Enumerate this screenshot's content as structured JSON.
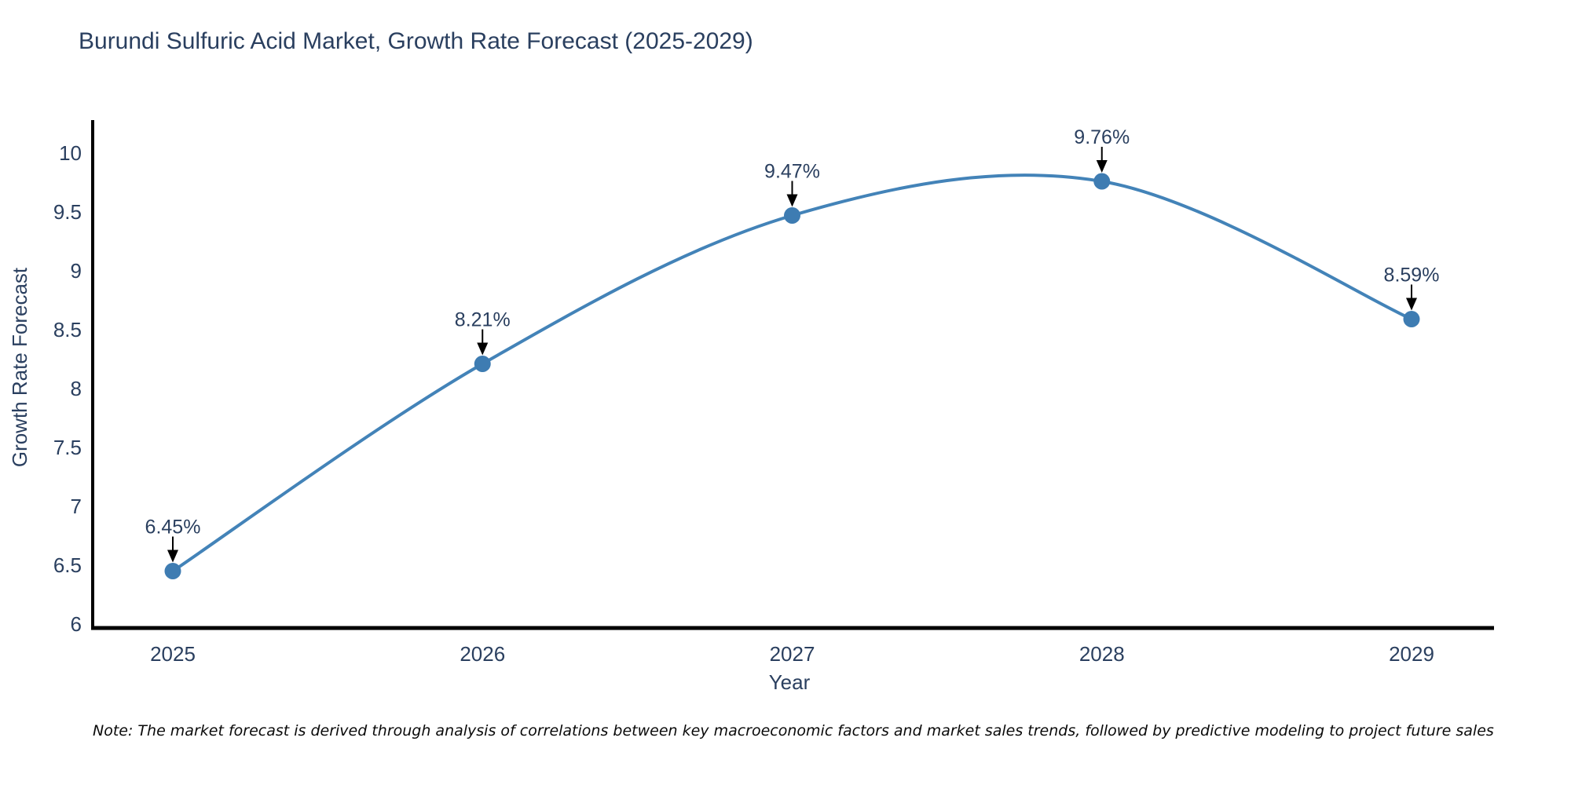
{
  "page": {
    "title": "Burundi Sulfuric Acid Market, Growth Rate Forecast (2025-2029)",
    "note": "Note: The market forecast is derived through analysis of correlations between key macroeconomic factors and market sales trends, followed by predictive modeling to project future sales"
  },
  "chart_data": {
    "type": "line",
    "line_shape": "spline",
    "markers": true,
    "title": "Burundi Sulfuric Acid Market, Growth Rate Forecast (2025-2029)",
    "xlabel": "Year",
    "ylabel": "Growth Rate Forecast",
    "categories": [
      "2025",
      "2026",
      "2027",
      "2028",
      "2029"
    ],
    "values": [
      6.45,
      8.21,
      9.47,
      9.76,
      8.59
    ],
    "point_labels": [
      "6.45%",
      "8.21%",
      "9.47%",
      "9.76%",
      "8.59%"
    ],
    "yticks": [
      6,
      6.5,
      7,
      7.5,
      8,
      8.5,
      9,
      9.5,
      10
    ],
    "ytick_labels": [
      "6",
      "6.5",
      "7",
      "7.5",
      "8",
      "8.5",
      "9",
      "9.5",
      "10"
    ],
    "ylim": [
      5.97,
      10.27
    ],
    "grid": false,
    "legend": "none",
    "colors": {
      "line": "#4383b8",
      "marker": "#3e7cb2",
      "annotation_text": "#2a3f5f",
      "annotation_arrow": "#000000",
      "axis": "#000000",
      "tick_text": "#2a3f5f",
      "title_text": "#2a3f5f",
      "note_text": "#0a0a0a",
      "background": "#ffffff"
    }
  }
}
